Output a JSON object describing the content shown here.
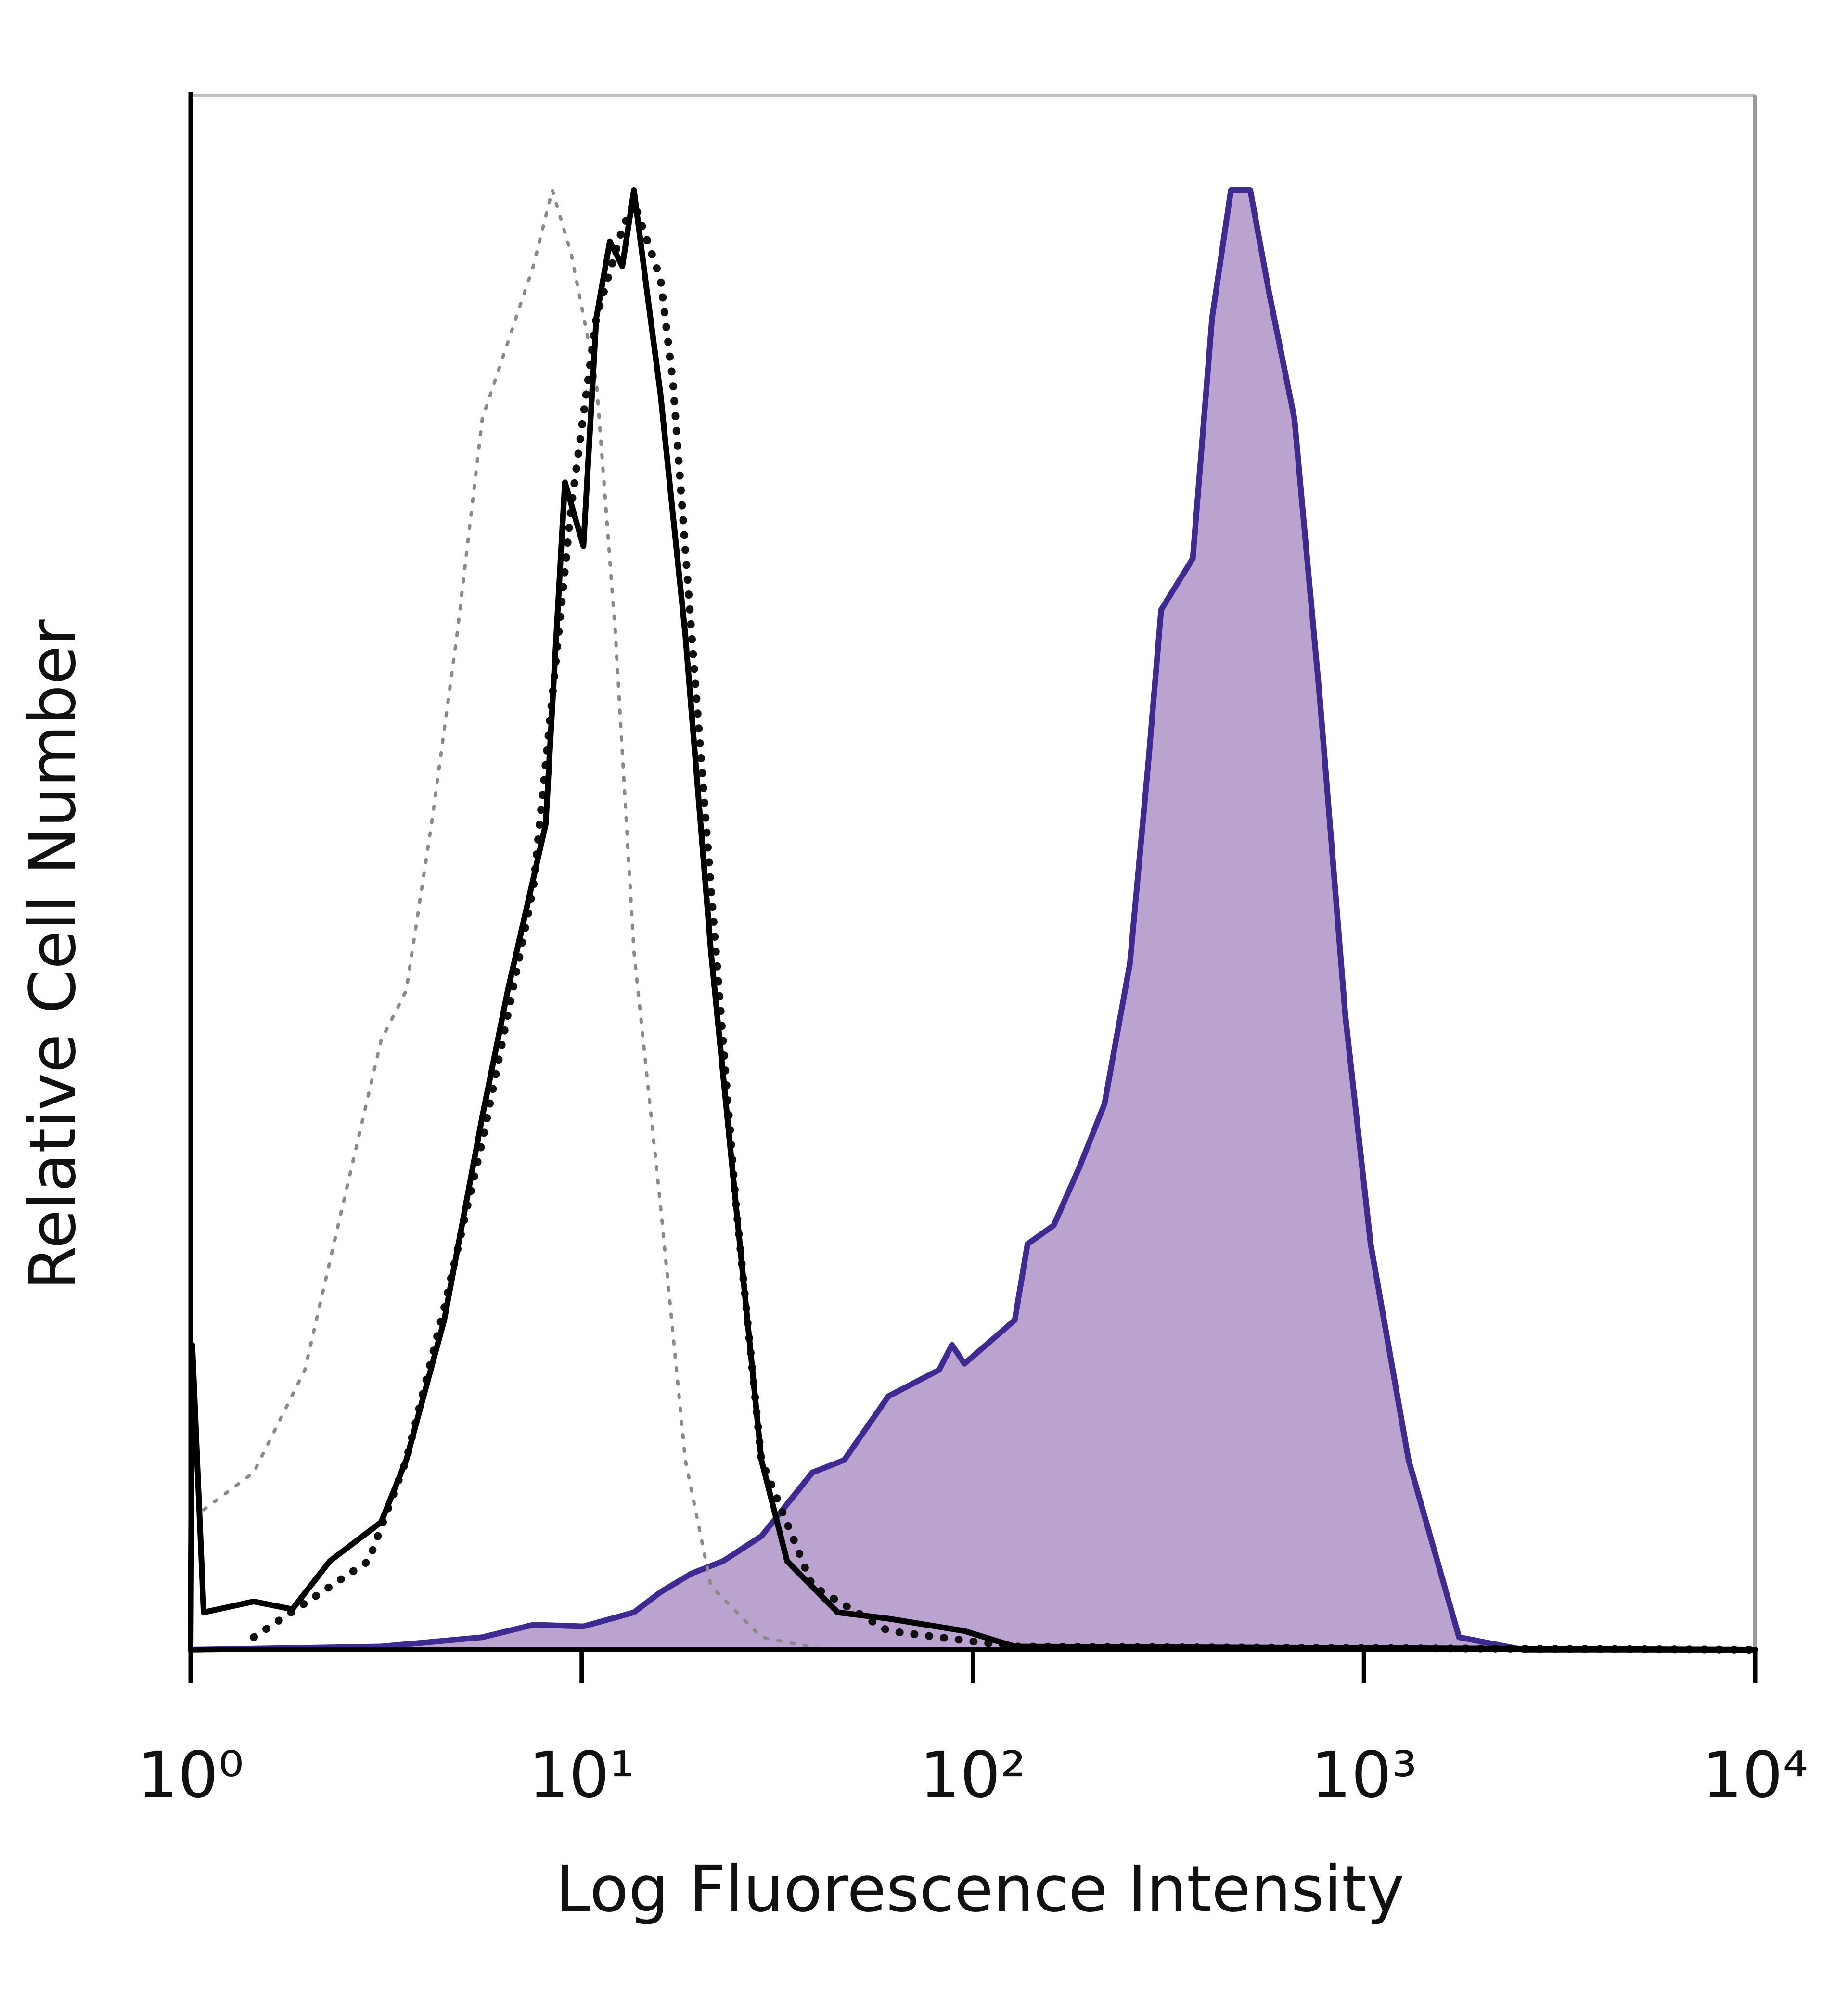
{
  "chart_data": {
    "type": "line",
    "xlabel": "Log Fluorescence Intensity",
    "ylabel": "Relative Cell Number",
    "xscale": "log",
    "xlim": [
      1,
      10000
    ],
    "ylim": [
      0,
      100
    ],
    "xticks": [
      {
        "value": 1,
        "label": "10⁰"
      },
      {
        "value": 10,
        "label": "10¹"
      },
      {
        "value": 100,
        "label": "10²"
      },
      {
        "value": 1000,
        "label": "10³"
      },
      {
        "value": 10000,
        "label": "10⁴"
      }
    ],
    "series": [
      {
        "color": "#3f2a8f",
        "fill": "#bba3cf",
        "dash": "solid",
        "x": [
          1,
          3.07,
          5.57,
          7.52,
          10.1,
          13.6,
          15.9,
          19.1,
          23.0,
          28.8,
          38.9,
          46.9,
          60.8,
          82.0,
          88.4,
          95.2,
          128,
          138,
          161,
          187,
          217,
          252,
          281,
          303,
          365,
          409,
          457,
          512,
          572,
          664,
          771,
          896,
          1040,
          1300,
          1750,
          2550,
          10000
        ],
        "values": [
          0,
          0.2,
          0.8,
          1.6,
          1.5,
          2.4,
          3.7,
          4.9,
          5.7,
          7.3,
          11.4,
          12.2,
          16.3,
          18.0,
          19.6,
          18.4,
          21.2,
          26.1,
          27.3,
          31.0,
          35.1,
          44.1,
          57.1,
          66.9,
          70.2,
          85.7,
          93.9,
          93.9,
          87.3,
          79.2,
          61.2,
          40.8,
          26.1,
          12.2,
          0.8,
          0,
          0
        ]
      },
      {
        "color": "#8a8a8a",
        "dash": "dotted",
        "x": [
          1.08,
          1.45,
          1.96,
          2.45,
          3.07,
          3.56,
          4.13,
          4.8,
          5.57,
          6.47,
          7.52,
          8.41,
          9.4,
          10.9,
          12.2,
          13.6,
          15.9,
          18.4,
          21.4,
          28.8,
          41.9
        ],
        "values": [
          9.0,
          11.4,
          18.0,
          28.6,
          39.2,
          42.4,
          53.1,
          65.3,
          79.2,
          84.1,
          89.0,
          93.9,
          89.8,
          81.6,
          65.3,
          44.9,
          28.6,
          12.2,
          4.1,
          0.8,
          0
        ]
      },
      {
        "color": "#111111",
        "dash": "heavy-dotted",
        "x": [
          1.45,
          2.85,
          3.56,
          4.45,
          5.57,
          7.52,
          9.4,
          10.9,
          12.7,
          13.6,
          15.9,
          17.1,
          19.1,
          21.4,
          24.8,
          28.8,
          38.9,
          60.8,
          128,
          10000
        ],
        "values": [
          0.8,
          5.7,
          12.2,
          22.0,
          32.7,
          49.0,
          73.5,
          85.7,
          91.4,
          93.1,
          88.2,
          81.6,
          65.3,
          49.0,
          28.6,
          12.2,
          4.1,
          1.2,
          0.2,
          0
        ]
      },
      {
        "color": "#000000",
        "dash": "solid",
        "x": [
          1,
          1.01,
          1.08,
          1.45,
          1.82,
          2.27,
          3.07,
          3.56,
          4.45,
          5.57,
          6.47,
          8.09,
          9.06,
          10.1,
          10.9,
          11.8,
          12.7,
          13.6,
          14.7,
          15.9,
          18.4,
          21.4,
          24.8,
          28.8,
          33.5,
          45.1,
          60.8,
          95.2,
          128,
          10000
        ],
        "values": [
          0,
          19.6,
          2.4,
          3.1,
          2.6,
          5.7,
          8.2,
          12.2,
          21.2,
          34.3,
          42.4,
          53.1,
          75.1,
          71.0,
          85.7,
          90.6,
          89.0,
          93.9,
          87.3,
          80.8,
          65.3,
          44.9,
          28.6,
          12.2,
          5.7,
          2.4,
          2.0,
          1.2,
          0.2,
          0
        ]
      }
    ]
  }
}
